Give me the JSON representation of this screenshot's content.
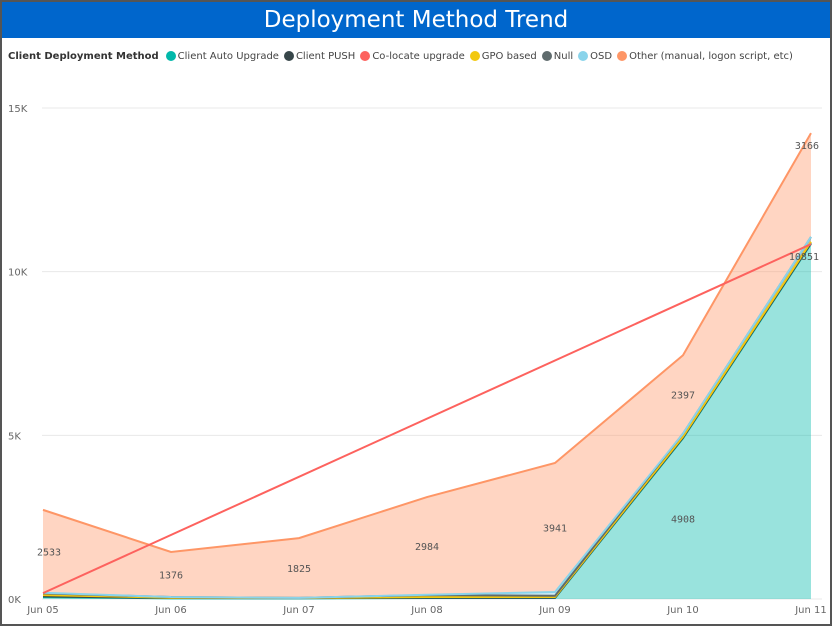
{
  "title": "Deployment Method Trend",
  "legend_title": "Client Deployment Method",
  "chart_data": {
    "type": "area",
    "stacked": true,
    "title": "Deployment Method Trend",
    "xlabel": "",
    "ylabel": "",
    "categories": [
      "Jun 05",
      "Jun 06",
      "Jun 07",
      "Jun 08",
      "Jun 09",
      "Jun 10",
      "Jun 11"
    ],
    "yticks": [
      "0K",
      "5K",
      "10K",
      "15K"
    ],
    "ylim": [
      0,
      15000
    ],
    "grid": true,
    "legend_position": "top-left",
    "series": [
      {
        "name": "Client Auto Upgrade",
        "color": "#01B8AA",
        "values": [
          60,
          20,
          20,
          30,
          30,
          4908,
          10851
        ],
        "labels": [
          null,
          null,
          null,
          null,
          null,
          "4908",
          "10851"
        ]
      },
      {
        "name": "Client PUSH",
        "color": "#374649",
        "values": [
          20,
          10,
          5,
          10,
          10,
          20,
          20
        ],
        "labels": []
      },
      {
        "name": "GPO based",
        "color": "#F2C80F",
        "values": [
          40,
          10,
          5,
          20,
          20,
          30,
          40
        ],
        "labels": []
      },
      {
        "name": "Null",
        "color": "#5F6B6D",
        "values": [
          50,
          20,
          5,
          60,
          40,
          90,
          150
        ],
        "labels": []
      },
      {
        "name": "OSD",
        "color": "#8AD4EB",
        "values": [
          20,
          0,
          0,
          10,
          115,
          2,
          4
        ],
        "labels": []
      },
      {
        "name": "Other (manual, logon script, etc)",
        "color": "#FE9666",
        "values": [
          2533,
          1376,
          1825,
          2984,
          3941,
          2397,
          3166
        ],
        "labels": [
          "2533",
          "1376",
          "1825",
          "2984",
          "3941",
          "2397",
          "3166"
        ]
      }
    ],
    "line_series": [
      {
        "name": "Co-locate upgrade",
        "color": "#FD625E",
        "points": [
          {
            "x": "Jun 05",
            "y": 180
          },
          {
            "x": "Jun 11",
            "y": 10840
          }
        ]
      }
    ]
  }
}
